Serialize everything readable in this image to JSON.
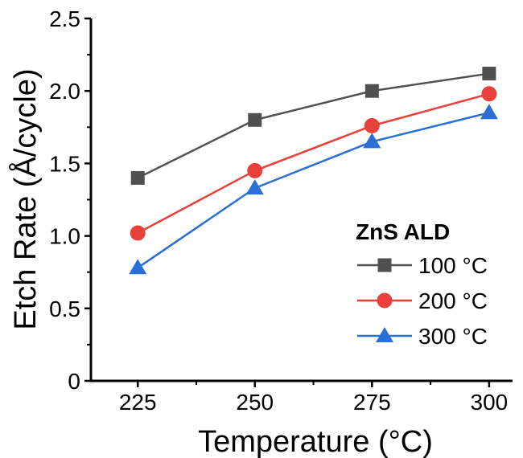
{
  "chart_data": {
    "type": "line",
    "xlabel": "Temperature (°C)",
    "ylabel": "Etch Rate (Å/cycle)",
    "x": [
      225,
      250,
      275,
      300
    ],
    "xticks": [
      "225",
      "250",
      "275",
      "300"
    ],
    "xlim": [
      215,
      305
    ],
    "ylim": [
      0,
      2.5
    ],
    "yticks": [
      "0",
      "0.5",
      "1.0",
      "1.5",
      "2.0",
      "2.5"
    ],
    "grid": false,
    "legend": {
      "title": "ZnS ALD",
      "placement": "bottom-right"
    },
    "series": [
      {
        "name": "100 °C",
        "values": [
          1.4,
          1.8,
          2.0,
          2.12
        ],
        "color": "#505050",
        "marker": "square"
      },
      {
        "name": "200 °C",
        "values": [
          1.02,
          1.45,
          1.76,
          1.98
        ],
        "color": "#e8403a",
        "marker": "circle"
      },
      {
        "name": "300 °C",
        "values": [
          0.78,
          1.33,
          1.65,
          1.85
        ],
        "color": "#2a6fd6",
        "marker": "triangle"
      }
    ]
  }
}
